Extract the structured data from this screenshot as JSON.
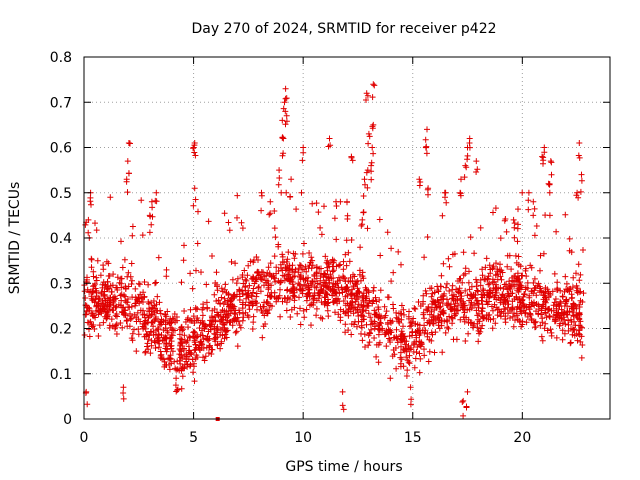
{
  "chart_data": {
    "type": "scatter",
    "title": "Day 270 of 2024, SRMTID for receiver p422",
    "xlabel": "GPS time / hours",
    "ylabel": "SRMTID / TECUs",
    "xlim": [
      0,
      24
    ],
    "ylim": [
      0,
      0.8
    ],
    "xticks": [
      0,
      5,
      10,
      15,
      20
    ],
    "xtick_labels": [
      "0",
      "5",
      "10",
      "15",
      "20"
    ],
    "yticks": [
      0,
      0.1,
      0.2,
      0.3,
      0.4,
      0.5,
      0.6,
      0.7,
      0.8
    ],
    "ytick_labels": [
      "0",
      "0.1",
      "0.2",
      "0.3",
      "0.4",
      "0.5",
      "0.6",
      "0.7",
      "0.8"
    ],
    "grid": true,
    "marker": "+",
    "series_color": "#e00000",
    "x_range_hours": [
      0,
      22.8
    ],
    "typical_range": [
      0.1,
      0.4
    ],
    "profile": [
      {
        "x": 0.0,
        "center": 0.26
      },
      {
        "x": 2.0,
        "center": 0.26
      },
      {
        "x": 4.5,
        "center": 0.15
      },
      {
        "x": 6.0,
        "center": 0.22
      },
      {
        "x": 9.0,
        "center": 0.31
      },
      {
        "x": 11.5,
        "center": 0.29
      },
      {
        "x": 14.8,
        "center": 0.17
      },
      {
        "x": 16.5,
        "center": 0.25
      },
      {
        "x": 19.5,
        "center": 0.28
      },
      {
        "x": 22.8,
        "center": 0.22
      }
    ],
    "peaks": [
      {
        "x": 0.1,
        "y": 0.06
      },
      {
        "x": 0.2,
        "y": 0.44
      },
      {
        "x": 0.3,
        "y": 0.5
      },
      {
        "x": 2.0,
        "y": 0.57
      },
      {
        "x": 2.05,
        "y": 0.61
      },
      {
        "x": 1.95,
        "y": 0.53
      },
      {
        "x": 3.0,
        "y": 0.45
      },
      {
        "x": 3.1,
        "y": 0.48
      },
      {
        "x": 3.3,
        "y": 0.5
      },
      {
        "x": 5.05,
        "y": 0.51
      },
      {
        "x": 5.0,
        "y": 0.6
      },
      {
        "x": 5.05,
        "y": 0.61
      },
      {
        "x": 8.1,
        "y": 0.5
      },
      {
        "x": 8.5,
        "y": 0.48
      },
      {
        "x": 8.9,
        "y": 0.55
      },
      {
        "x": 9.1,
        "y": 0.62
      },
      {
        "x": 9.05,
        "y": 0.66
      },
      {
        "x": 9.15,
        "y": 0.7
      },
      {
        "x": 9.2,
        "y": 0.73
      },
      {
        "x": 9.25,
        "y": 0.67
      },
      {
        "x": 9.45,
        "y": 0.53
      },
      {
        "x": 10.0,
        "y": 0.6
      },
      {
        "x": 11.2,
        "y": 0.62
      },
      {
        "x": 11.5,
        "y": 0.48
      },
      {
        "x": 12.0,
        "y": 0.48
      },
      {
        "x": 12.2,
        "y": 0.58
      },
      {
        "x": 12.8,
        "y": 0.53
      },
      {
        "x": 12.95,
        "y": 0.55
      },
      {
        "x": 13.0,
        "y": 0.63
      },
      {
        "x": 13.1,
        "y": 0.56
      },
      {
        "x": 13.15,
        "y": 0.6
      },
      {
        "x": 12.9,
        "y": 0.72
      },
      {
        "x": 13.2,
        "y": 0.74
      },
      {
        "x": 13.2,
        "y": 0.65
      },
      {
        "x": 12.7,
        "y": 0.44
      },
      {
        "x": 15.3,
        "y": 0.53
      },
      {
        "x": 15.6,
        "y": 0.6
      },
      {
        "x": 15.65,
        "y": 0.64
      },
      {
        "x": 15.7,
        "y": 0.51
      },
      {
        "x": 16.5,
        "y": 0.5
      },
      {
        "x": 17.2,
        "y": 0.53
      },
      {
        "x": 17.4,
        "y": 0.56
      },
      {
        "x": 17.5,
        "y": 0.6
      },
      {
        "x": 17.6,
        "y": 0.62
      },
      {
        "x": 17.9,
        "y": 0.57
      },
      {
        "x": 19.6,
        "y": 0.44
      },
      {
        "x": 19.8,
        "y": 0.43
      },
      {
        "x": 20.3,
        "y": 0.5
      },
      {
        "x": 20.5,
        "y": 0.48
      },
      {
        "x": 20.9,
        "y": 0.58
      },
      {
        "x": 21.0,
        "y": 0.6
      },
      {
        "x": 21.2,
        "y": 0.52
      },
      {
        "x": 21.3,
        "y": 0.57
      },
      {
        "x": 22.6,
        "y": 0.61
      },
      {
        "x": 22.7,
        "y": 0.54
      },
      {
        "x": 22.5,
        "y": 0.5
      },
      {
        "x": 17.3,
        "y": 0.04
      },
      {
        "x": 17.5,
        "y": 0.06
      },
      {
        "x": 14.9,
        "y": 0.07
      },
      {
        "x": 11.8,
        "y": 0.06
      },
      {
        "x": 1.8,
        "y": 0.07
      },
      {
        "x": 4.2,
        "y": 0.09
      }
    ],
    "zero_marker": {
      "x": 6.1,
      "y": 0.0
    }
  }
}
